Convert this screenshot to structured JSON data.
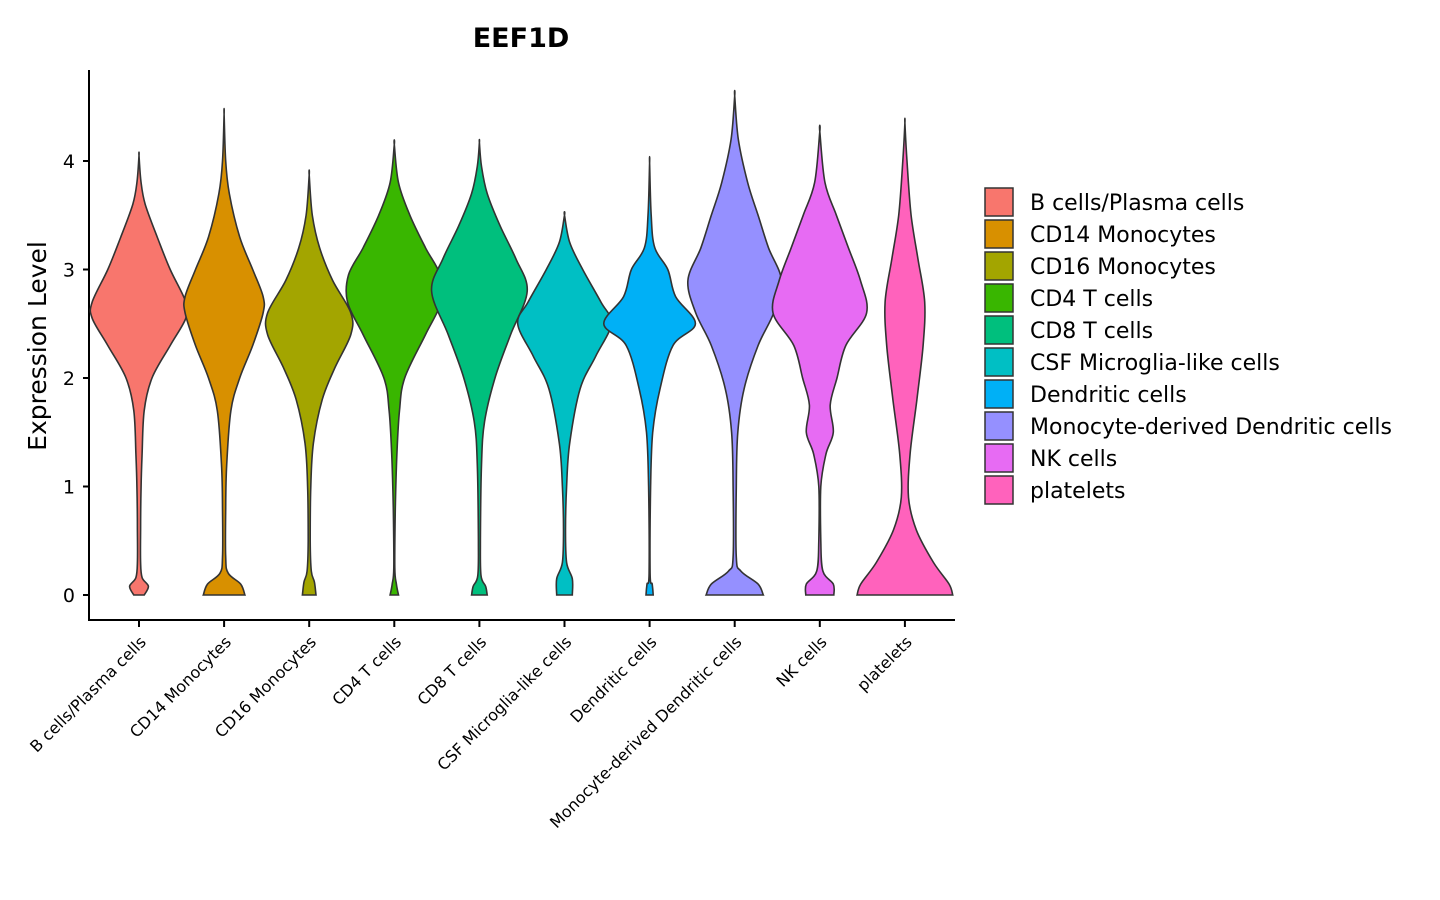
{
  "chart_data": {
    "type": "violin",
    "title": "EEF1D",
    "xlabel": "",
    "ylabel": "Expression Level",
    "ylim": [
      -0.22,
      4.9
    ],
    "yticks": [
      0,
      1,
      2,
      3,
      4
    ],
    "ytick_labels": [
      "0",
      "1",
      "2",
      "3",
      "4"
    ],
    "legend_position": "right",
    "categories": [
      "B cells/Plasma cells",
      "CD14 Monocytes",
      "CD16 Monocytes",
      "CD4 T cells",
      "CD8 T cells",
      "CSF Microglia-like cells",
      "Dendritic cells",
      "Monocyte-derived Dendritic cells",
      "NK cells",
      "platelets"
    ],
    "colors": [
      "#F8766D",
      "#D89000",
      "#A3A500",
      "#39B600",
      "#00BF7D",
      "#00BFC4",
      "#00B0F6",
      "#9590FF",
      "#E76BF3",
      "#FF62BC"
    ],
    "series": [
      {
        "name": "B cells/Plasma cells",
        "min": 0,
        "max": 4.05,
        "profile": [
          [
            0,
            0.1
          ],
          [
            0.08,
            0.18
          ],
          [
            0.16,
            0.06
          ],
          [
            0.3,
            0.03
          ],
          [
            0.6,
            0.03
          ],
          [
            1.0,
            0.04
          ],
          [
            1.3,
            0.06
          ],
          [
            1.7,
            0.1
          ],
          [
            2.0,
            0.25
          ],
          [
            2.3,
            0.6
          ],
          [
            2.55,
            0.9
          ],
          [
            2.7,
            0.9
          ],
          [
            3.0,
            0.6
          ],
          [
            3.3,
            0.35
          ],
          [
            3.6,
            0.12
          ],
          [
            3.8,
            0.04
          ],
          [
            4.05,
            0.0
          ]
        ]
      },
      {
        "name": "CD14 Monocytes",
        "min": 0,
        "max": 4.43,
        "profile": [
          [
            0,
            0.4
          ],
          [
            0.1,
            0.32
          ],
          [
            0.2,
            0.08
          ],
          [
            0.35,
            0.03
          ],
          [
            0.8,
            0.03
          ],
          [
            1.2,
            0.05
          ],
          [
            1.7,
            0.13
          ],
          [
            2.0,
            0.3
          ],
          [
            2.3,
            0.55
          ],
          [
            2.6,
            0.75
          ],
          [
            2.75,
            0.75
          ],
          [
            3.0,
            0.55
          ],
          [
            3.3,
            0.3
          ],
          [
            3.7,
            0.1
          ],
          [
            4.0,
            0.03
          ],
          [
            4.43,
            0.0
          ]
        ]
      },
      {
        "name": "CD16 Monocytes",
        "min": 0,
        "max": 3.87,
        "profile": [
          [
            0,
            0.13
          ],
          [
            0.12,
            0.1
          ],
          [
            0.22,
            0.04
          ],
          [
            0.5,
            0.02
          ],
          [
            1.0,
            0.03
          ],
          [
            1.4,
            0.08
          ],
          [
            1.8,
            0.25
          ],
          [
            2.1,
            0.5
          ],
          [
            2.4,
            0.8
          ],
          [
            2.6,
            0.8
          ],
          [
            2.9,
            0.45
          ],
          [
            3.2,
            0.2
          ],
          [
            3.5,
            0.06
          ],
          [
            3.87,
            0.0
          ]
        ]
      },
      {
        "name": "CD4 T cells",
        "min": 0,
        "max": 4.15,
        "profile": [
          [
            0,
            0.08
          ],
          [
            0.1,
            0.04
          ],
          [
            0.25,
            0.01
          ],
          [
            0.8,
            0.02
          ],
          [
            1.3,
            0.05
          ],
          [
            1.7,
            0.1
          ],
          [
            2.0,
            0.2
          ],
          [
            2.4,
            0.6
          ],
          [
            2.7,
            0.9
          ],
          [
            2.95,
            0.88
          ],
          [
            3.2,
            0.6
          ],
          [
            3.5,
            0.3
          ],
          [
            3.8,
            0.08
          ],
          [
            4.15,
            0.0
          ]
        ]
      },
      {
        "name": "CD8 T cells",
        "min": 0,
        "max": 4.17,
        "profile": [
          [
            0,
            0.15
          ],
          [
            0.08,
            0.12
          ],
          [
            0.18,
            0.03
          ],
          [
            0.5,
            0.02
          ],
          [
            1.2,
            0.04
          ],
          [
            1.6,
            0.1
          ],
          [
            2.0,
            0.3
          ],
          [
            2.4,
            0.6
          ],
          [
            2.8,
            0.92
          ],
          [
            3.1,
            0.7
          ],
          [
            3.4,
            0.4
          ],
          [
            3.7,
            0.15
          ],
          [
            3.95,
            0.04
          ],
          [
            4.17,
            0.0
          ]
        ]
      },
      {
        "name": "CSF Microglia-like cells",
        "min": 0,
        "max": 3.5,
        "profile": [
          [
            0,
            0.15
          ],
          [
            0.15,
            0.15
          ],
          [
            0.3,
            0.04
          ],
          [
            0.6,
            0.02
          ],
          [
            1.0,
            0.04
          ],
          [
            1.4,
            0.1
          ],
          [
            1.9,
            0.3
          ],
          [
            2.2,
            0.6
          ],
          [
            2.5,
            0.9
          ],
          [
            2.7,
            0.7
          ],
          [
            3.0,
            0.35
          ],
          [
            3.25,
            0.1
          ],
          [
            3.5,
            0.0
          ]
        ]
      },
      {
        "name": "Dendritic cells",
        "min": 0,
        "max": 3.98,
        "profile": [
          [
            0,
            0.07
          ],
          [
            0.1,
            0.05
          ],
          [
            0.2,
            0.01
          ],
          [
            1.0,
            0.02
          ],
          [
            1.5,
            0.06
          ],
          [
            1.9,
            0.2
          ],
          [
            2.3,
            0.45
          ],
          [
            2.5,
            0.88
          ],
          [
            2.75,
            0.5
          ],
          [
            3.0,
            0.35
          ],
          [
            3.2,
            0.1
          ],
          [
            3.5,
            0.03
          ],
          [
            3.98,
            0.0
          ]
        ]
      },
      {
        "name": "Monocyte-derived Dendritic cells",
        "min": 0,
        "max": 4.6,
        "profile": [
          [
            0,
            0.55
          ],
          [
            0.1,
            0.45
          ],
          [
            0.22,
            0.12
          ],
          [
            0.35,
            0.03
          ],
          [
            1.0,
            0.03
          ],
          [
            1.5,
            0.06
          ],
          [
            1.9,
            0.18
          ],
          [
            2.3,
            0.45
          ],
          [
            2.6,
            0.75
          ],
          [
            2.9,
            0.9
          ],
          [
            3.2,
            0.65
          ],
          [
            3.5,
            0.45
          ],
          [
            3.8,
            0.25
          ],
          [
            4.2,
            0.07
          ],
          [
            4.6,
            0.0
          ]
        ]
      },
      {
        "name": "NK cells",
        "min": 0,
        "max": 4.27,
        "profile": [
          [
            0,
            0.27
          ],
          [
            0.1,
            0.26
          ],
          [
            0.22,
            0.06
          ],
          [
            0.5,
            0.02
          ],
          [
            1.0,
            0.02
          ],
          [
            1.3,
            0.12
          ],
          [
            1.5,
            0.26
          ],
          [
            1.75,
            0.2
          ],
          [
            2.0,
            0.33
          ],
          [
            2.3,
            0.5
          ],
          [
            2.6,
            0.9
          ],
          [
            2.9,
            0.78
          ],
          [
            3.2,
            0.55
          ],
          [
            3.5,
            0.32
          ],
          [
            3.8,
            0.1
          ],
          [
            4.27,
            0.0
          ]
        ]
      },
      {
        "name": "platelets",
        "min": 0,
        "max": 4.35,
        "profile": [
          [
            0,
            0.92
          ],
          [
            0.1,
            0.85
          ],
          [
            0.3,
            0.55
          ],
          [
            0.6,
            0.22
          ],
          [
            0.9,
            0.07
          ],
          [
            1.3,
            0.1
          ],
          [
            1.8,
            0.23
          ],
          [
            2.3,
            0.35
          ],
          [
            2.7,
            0.38
          ],
          [
            3.1,
            0.25
          ],
          [
            3.5,
            0.12
          ],
          [
            4.0,
            0.04
          ],
          [
            4.35,
            0.0
          ]
        ]
      }
    ]
  }
}
